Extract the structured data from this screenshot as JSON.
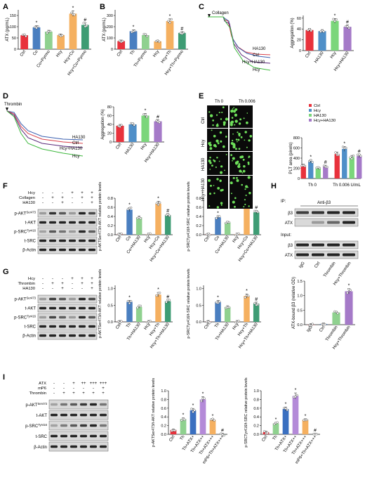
{
  "figure": {
    "panels": [
      "A",
      "B",
      "C",
      "D",
      "E",
      "F",
      "G",
      "H",
      "I"
    ],
    "sig_star": "*",
    "sig_hash": "#"
  },
  "colors": {
    "ctrl": "#e8323c",
    "co": "#4a7fc0",
    "pyrmo": "#8fd18f",
    "hcy": "#f5b060",
    "combo": "#3e9c74",
    "hcy_agg": "#7bd67b",
    "ha130": "#4f8fc8",
    "hcy_ha130": "#a57ac8",
    "atx_low": "#3a6fc0",
    "atx_mid": "#b48ad8",
    "atx_high": "#f5b060",
    "blot_bg": "#d9d9d9",
    "band": "#1a1a1a",
    "micro_bg": "#0a0a0a",
    "cell": "#6ee05a",
    "trace_green": "#3db83d",
    "trace_purple": "#5a2a7a",
    "trace_red": "#d8404a",
    "trace_blue": "#3a5fb0"
  },
  "panel_A": {
    "ylabel": "ATX (pg/mL)",
    "yticks": [
      "0",
      "50",
      "100",
      "150"
    ],
    "categories": [
      "Ctrl",
      "Co",
      "Co+Pyrmo",
      "Hcy",
      "Hcy+Co",
      "Hcy+Co+Pyrmo"
    ],
    "marks": [
      "",
      "*",
      "",
      "",
      "*",
      "#"
    ]
  },
  "panel_B": {
    "ylabel": "ATX (pg/mL)",
    "yticks": [
      "0",
      "100",
      "200",
      "300"
    ],
    "categories": [
      "Ctrl",
      "Th",
      "Th+Pyrmo",
      "Hcy",
      "Hcy+Th",
      "Hcy+Th+Pyrmo"
    ],
    "marks": [
      "",
      "*",
      "",
      "",
      "*",
      "#"
    ]
  },
  "panel_C": {
    "agonist": "Collagen",
    "trace_labels": [
      "HA130",
      "Ctrl",
      "Hcy+HA130",
      "Hcy"
    ],
    "ylabel": "Aggregation (%)",
    "yticks": [
      "0",
      "20",
      "40",
      "60"
    ],
    "categories": [
      "Ctrl",
      "HA130",
      "Hcy",
      "Hcy+HA130"
    ],
    "marks": [
      "",
      "",
      "*",
      "#"
    ]
  },
  "panel_D": {
    "agonist": "Thrombin",
    "trace_labels": [
      "HA130",
      "Ctrl",
      "Hcy+HA130",
      "Hcy"
    ],
    "ylabel": "Aggregation (%)",
    "yticks": [
      "0",
      "20",
      "40",
      "60",
      "80"
    ],
    "categories": [
      "Ctrl",
      "HA130",
      "Hcy",
      "Hcy+HA130"
    ],
    "marks": [
      "",
      "",
      "*",
      "#"
    ]
  },
  "panel_E": {
    "col_labels": [
      "Th 0",
      "Th 0.006"
    ],
    "row_labels": [
      "Ctrl",
      "Hcy",
      "HA130",
      "Hcy+HA130"
    ],
    "legend": [
      "Ctrl",
      "Hcy",
      "HA130",
      "Hcy+HA130"
    ],
    "ylabel": "PLT area (pixels)",
    "yticks": [
      "0",
      "200",
      "400",
      "600",
      "800"
    ],
    "groups": [
      "Th 0",
      "Th 0.006 U/mL"
    ],
    "marks": [
      "",
      "*",
      "",
      "#",
      "",
      "*",
      "",
      "#"
    ]
  },
  "panel_F": {
    "treat_rows": [
      {
        "label": "Hcy",
        "signs": [
          "-",
          "-",
          "-",
          "+",
          "+",
          "+"
        ]
      },
      {
        "label": "Collagen",
        "signs": [
          "-",
          "+",
          "+",
          "-",
          "+",
          "+"
        ]
      },
      {
        "label": "HA130",
        "signs": [
          "-",
          "-",
          "+",
          "-",
          "-",
          "+"
        ]
      }
    ],
    "blots": [
      "p-AKT",
      "t-AKT",
      "p-SRC",
      "t-SRC",
      "β-Actin"
    ],
    "blot_sups": [
      "Ser473",
      "",
      "Tyr416",
      "",
      ""
    ],
    "chart1_ylabel": "p-AKTSer473/t-AKT relative protein levels",
    "chart2_ylabel": "p-SRCTyr416/t-SRC relative protein levels",
    "yticks1": [
      "0.0",
      "0.2",
      "0.4",
      "0.6",
      "0.8"
    ],
    "yticks2": [
      "0.0",
      "0.2",
      "0.4",
      "0.6",
      "0.8"
    ],
    "categories": [
      "Ctrl",
      "Co",
      "Co+HA130",
      "Hcy",
      "Hcy+Co",
      "Hcy+Co+HA130"
    ],
    "marks": [
      "",
      "*",
      "",
      "",
      "*",
      "#"
    ]
  },
  "panel_G": {
    "treat_rows": [
      {
        "label": "Hcy",
        "signs": [
          "-",
          "-",
          "-",
          "+",
          "+",
          "+"
        ]
      },
      {
        "label": "Thrombin",
        "signs": [
          "-",
          "+",
          "+",
          "-",
          "+",
          "+"
        ]
      },
      {
        "label": "HA130",
        "signs": [
          "-",
          "-",
          "+",
          "-",
          "-",
          "+"
        ]
      }
    ],
    "blots": [
      "p-AKT",
      "t-AKT",
      "p-SRC",
      "t-SRC",
      "β-Actin"
    ],
    "blot_sups": [
      "Ser473",
      "",
      "Tyr416",
      "",
      ""
    ],
    "chart1_ylabel": "p-AKTSer473/t-AKT relative protein levels",
    "chart2_ylabel": "p-SRCTyr416/t-SRC relative protein levels",
    "yticks1": [
      "0.0",
      "0.5",
      "1.0"
    ],
    "yticks2": [
      "0.0",
      "0.5",
      "1.0"
    ],
    "categories": [
      "Ctrl",
      "Th",
      "Th+HA130",
      "Hcy",
      "Hcy+Th",
      "Hcy+Th+HA130"
    ],
    "marks": [
      "",
      "*",
      "",
      "",
      "*",
      "#"
    ]
  },
  "panel_H": {
    "ip_label": "IP:",
    "ip_antibody": "Anti-β3",
    "input_label": "Input:",
    "blots": [
      "β3",
      "ATX",
      "β3",
      "ATX"
    ],
    "lanes": [
      "IgG",
      "Ctrl",
      "Thrombin",
      "Hcy+Thrombin"
    ],
    "ylabel": "ATX-bound β3 (relative OD)",
    "yticks": [
      "0.0",
      "0.5",
      "1.0",
      "1.5"
    ],
    "marks": [
      "",
      "",
      "",
      "*"
    ]
  },
  "panel_I": {
    "treat_rows": [
      {
        "label": "ATX",
        "signs": [
          "-",
          "-",
          "+",
          "++",
          "+++",
          "+++"
        ]
      },
      {
        "label": "mP6",
        "signs": [
          "-",
          "-",
          "-",
          "-",
          "-",
          "+"
        ]
      },
      {
        "label": "Thrombin",
        "signs": [
          "-",
          "+",
          "+",
          "+",
          "+",
          "+"
        ]
      }
    ],
    "blots": [
      "p-AKT",
      "t-AKT",
      "p-SRC",
      "t-SRC",
      "β-Actin"
    ],
    "blot_sups": [
      "Ser473",
      "",
      "Tyr416",
      "",
      ""
    ],
    "chart1_ylabel": "p-AKTSer473/t-AKT relative protein levels",
    "chart2_ylabel": "p-SRCTyr416/t-SRC relative protein levels",
    "yticks1": [
      "0.0",
      "0.2",
      "0.4",
      "0.6",
      "0.8",
      "1.0"
    ],
    "yticks2": [
      "0.0",
      "0.2",
      "0.4",
      "0.6",
      "0.8",
      "1.0"
    ],
    "categories": [
      "Ctrl",
      "Th",
      "Th+ATX+",
      "Th+ATX++",
      "Th+ATX+++",
      "mP6+Th+ATX+++"
    ],
    "marks": [
      "",
      "*",
      "*",
      "*",
      "*",
      "#"
    ]
  },
  "chart_data": [
    {
      "type": "bar",
      "panel": "A",
      "categories": [
        "Ctrl",
        "Co",
        "Co+Pyrmo",
        "Hcy",
        "Hcy+Co",
        "Hcy+Co+Pyrmo"
      ],
      "values": [
        62,
        97,
        78,
        63,
        158,
        108
      ],
      "ylabel": "ATX (pg/mL)",
      "ylim": [
        0,
        175
      ]
    },
    {
      "type": "bar",
      "panel": "B",
      "categories": [
        "Ctrl",
        "Th",
        "Th+Pyrmo",
        "Hcy",
        "Hcy+Th",
        "Hcy+Th+Pyrmo"
      ],
      "values": [
        72,
        160,
        125,
        70,
        250,
        145
      ],
      "ylabel": "ATX (pg/mL)",
      "ylim": [
        0,
        350
      ]
    },
    {
      "type": "bar",
      "panel": "C",
      "categories": [
        "Ctrl",
        "HA130",
        "Hcy",
        "Hcy+HA130"
      ],
      "values": [
        38,
        36,
        55,
        44
      ],
      "ylabel": "Aggregation (%)",
      "ylim": [
        0,
        65
      ]
    },
    {
      "type": "bar",
      "panel": "D",
      "categories": [
        "Ctrl",
        "HA130",
        "Hcy",
        "Hcy+HA130"
      ],
      "values": [
        37,
        40,
        60,
        47
      ],
      "ylabel": "Aggregation (%)",
      "ylim": [
        0,
        80
      ]
    },
    {
      "type": "bar",
      "panel": "E",
      "categories": [
        "Ctrl",
        "Hcy",
        "HA130",
        "Hcy+HA130",
        "Ctrl",
        "Hcy",
        "HA130",
        "Hcy+HA130"
      ],
      "groups": [
        "Th 0",
        "Th 0.006 U/mL"
      ],
      "values": [
        260,
        340,
        200,
        240,
        480,
        580,
        420,
        440
      ],
      "ylabel": "PLT area (pixels)",
      "ylim": [
        0,
        800
      ]
    },
    {
      "type": "bar",
      "panel": "F-AKT",
      "categories": [
        "Ctrl",
        "Co",
        "Co+HA130",
        "Hcy",
        "Hcy+Co",
        "Hcy+Co+HA130"
      ],
      "values": [
        0.01,
        0.55,
        0.38,
        0.01,
        0.68,
        0.43
      ],
      "ylim": [
        0,
        0.8
      ]
    },
    {
      "type": "bar",
      "panel": "F-SRC",
      "categories": [
        "Ctrl",
        "Co",
        "Co+HA130",
        "Hcy",
        "Hcy+Co",
        "Hcy+Co+HA130"
      ],
      "values": [
        0.01,
        0.38,
        0.27,
        0.01,
        0.72,
        0.49
      ],
      "ylim": [
        0,
        0.8
      ]
    },
    {
      "type": "bar",
      "panel": "G-AKT",
      "categories": [
        "Ctrl",
        "Th",
        "Th+HA130",
        "Hcy",
        "Hcy+Th",
        "Hcy+Th+HA130"
      ],
      "values": [
        0.01,
        0.6,
        0.45,
        0.01,
        0.82,
        0.62
      ],
      "ylim": [
        0,
        1.1
      ]
    },
    {
      "type": "bar",
      "panel": "G-SRC",
      "categories": [
        "Ctrl",
        "Th",
        "Th+HA130",
        "Hcy",
        "Hcy+Th",
        "Hcy+Th+HA130"
      ],
      "values": [
        0.01,
        0.6,
        0.45,
        0.01,
        0.78,
        0.55
      ],
      "ylim": [
        0,
        1.1
      ]
    },
    {
      "type": "bar",
      "panel": "H",
      "categories": [
        "IgG",
        "Ctrl",
        "Thrombin",
        "Hcy+Thrombin"
      ],
      "values": [
        0.0,
        0.02,
        0.42,
        1.15
      ],
      "ylabel": "ATX-bound β3 (relative OD)",
      "ylim": [
        0,
        1.5
      ]
    },
    {
      "type": "bar",
      "panel": "I-AKT",
      "categories": [
        "Ctrl",
        "Th",
        "Th+ATX+",
        "Th+ATX++",
        "Th+ATX+++",
        "mP6+Th+ATX+++"
      ],
      "values": [
        0.1,
        0.35,
        0.55,
        0.8,
        0.33,
        0.0
      ],
      "ylim": [
        0,
        1.0
      ]
    },
    {
      "type": "bar",
      "panel": "I-SRC",
      "categories": [
        "Ctrl",
        "Th",
        "Th+ATX+",
        "Th+ATX++",
        "Th+ATX+++",
        "mP6+Th+ATX+++"
      ],
      "values": [
        0.05,
        0.25,
        0.58,
        0.88,
        0.33,
        0.0
      ],
      "ylim": [
        0,
        1.0
      ]
    }
  ]
}
